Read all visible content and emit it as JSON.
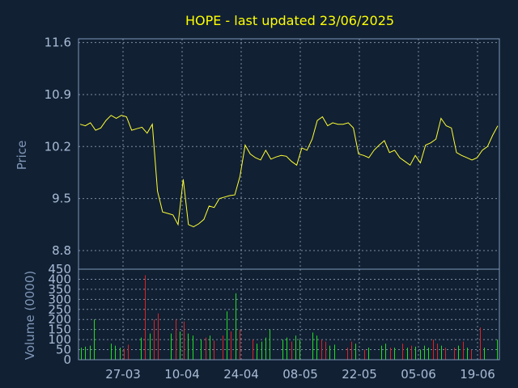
{
  "chart_data": {
    "title": "HOPE - last updated 23/06/2025",
    "colors": {
      "background": "#112033",
      "frame": "#7f97b7",
      "grid": "#9aa9bf",
      "price_line": "#ffff33",
      "volume_up": "#22dd22",
      "volume_down": "#dd2222",
      "title": "#ffff00",
      "tick_text": "#a9bcd6"
    },
    "x_ticks": [
      "27-03",
      "10-04",
      "24-04",
      "08-05",
      "22-05",
      "05-06",
      "19-06"
    ],
    "price_panel": {
      "type": "line",
      "ylabel": "Price",
      "ylim": [
        8.55,
        11.65
      ],
      "y_ticks": [
        11.6,
        10.9,
        10.2,
        9.5,
        8.8
      ],
      "grid": true,
      "series": [
        {
          "values": [
            10.5,
            10.48,
            10.52,
            10.42,
            10.45,
            10.55,
            10.62,
            10.58,
            10.62,
            10.6,
            10.42,
            10.44,
            10.46,
            10.38,
            10.5,
            9.6,
            9.32,
            9.3,
            9.28,
            9.15,
            9.76,
            9.15,
            9.12,
            9.16,
            9.22,
            9.4,
            9.38,
            9.5,
            9.52,
            9.54,
            9.55,
            9.8,
            10.22,
            10.1,
            10.05,
            10.02,
            10.15,
            10.03,
            10.06,
            10.08,
            10.07,
            10.0,
            9.95,
            10.18,
            10.15,
            10.3,
            10.55,
            10.6,
            10.48,
            10.52,
            10.5,
            10.5,
            10.52,
            10.45,
            10.1,
            10.08,
            10.05,
            10.15,
            10.22,
            10.28,
            10.12,
            10.15,
            10.05,
            10.0,
            9.95,
            10.08,
            9.98,
            10.22,
            10.25,
            10.3,
            10.58,
            10.48,
            10.45,
            10.12,
            10.08,
            10.05,
            10.02,
            10.05,
            10.15,
            10.2,
            10.35,
            10.48
          ]
        }
      ]
    },
    "volume_panel": {
      "type": "bar",
      "ylabel": "Volume (0000)",
      "ylim": [
        0,
        450
      ],
      "y_ticks": [
        450,
        400,
        350,
        300,
        250,
        200,
        150,
        100,
        50,
        0
      ],
      "grid": true,
      "values": [
        60,
        65,
        70,
        200,
        0,
        0,
        0,
        80,
        70,
        60,
        55,
        75,
        0,
        0,
        110,
        420,
        130,
        200,
        230,
        0,
        0,
        130,
        200,
        140,
        190,
        130,
        120,
        0,
        100,
        110,
        120,
        95,
        0,
        120,
        240,
        140,
        330,
        150,
        0,
        0,
        100,
        80,
        90,
        110,
        150,
        0,
        0,
        100,
        110,
        90,
        120,
        100,
        0,
        0,
        135,
        120,
        100,
        90,
        70,
        75,
        0,
        0,
        60,
        90,
        80,
        0,
        50,
        60,
        0,
        0,
        70,
        80,
        60,
        60,
        0,
        80,
        60,
        70,
        65,
        50,
        70,
        60,
        100,
        80,
        70,
        60,
        0,
        60,
        70,
        90,
        60,
        50,
        0,
        160,
        60,
        0,
        0,
        100
      ],
      "directions": [
        "up",
        "up",
        "up",
        "up",
        "up",
        "up",
        "up",
        "up",
        "up",
        "up",
        "down",
        "down",
        "down",
        "down",
        "up",
        "down",
        "up",
        "down",
        "down",
        "up",
        "up",
        "up",
        "down",
        "up",
        "down",
        "up",
        "up",
        "up",
        "up",
        "down",
        "up",
        "down",
        "down",
        "down",
        "up",
        "down",
        "up",
        "down",
        "down",
        "down",
        "down",
        "up",
        "up",
        "up",
        "up",
        "up",
        "up",
        "up",
        "up",
        "down",
        "up",
        "up",
        "up",
        "up",
        "up",
        "up",
        "down",
        "down",
        "up",
        "up",
        "up",
        "up",
        "down",
        "down",
        "up",
        "up",
        "down",
        "up",
        "up",
        "up",
        "up",
        "up",
        "down",
        "up",
        "up",
        "down",
        "up",
        "down",
        "up",
        "up",
        "up",
        "up",
        "down",
        "down",
        "up",
        "down",
        "up",
        "down",
        "up",
        "down",
        "up",
        "down",
        "up",
        "down",
        "up",
        "up",
        "up",
        "up"
      ]
    }
  }
}
